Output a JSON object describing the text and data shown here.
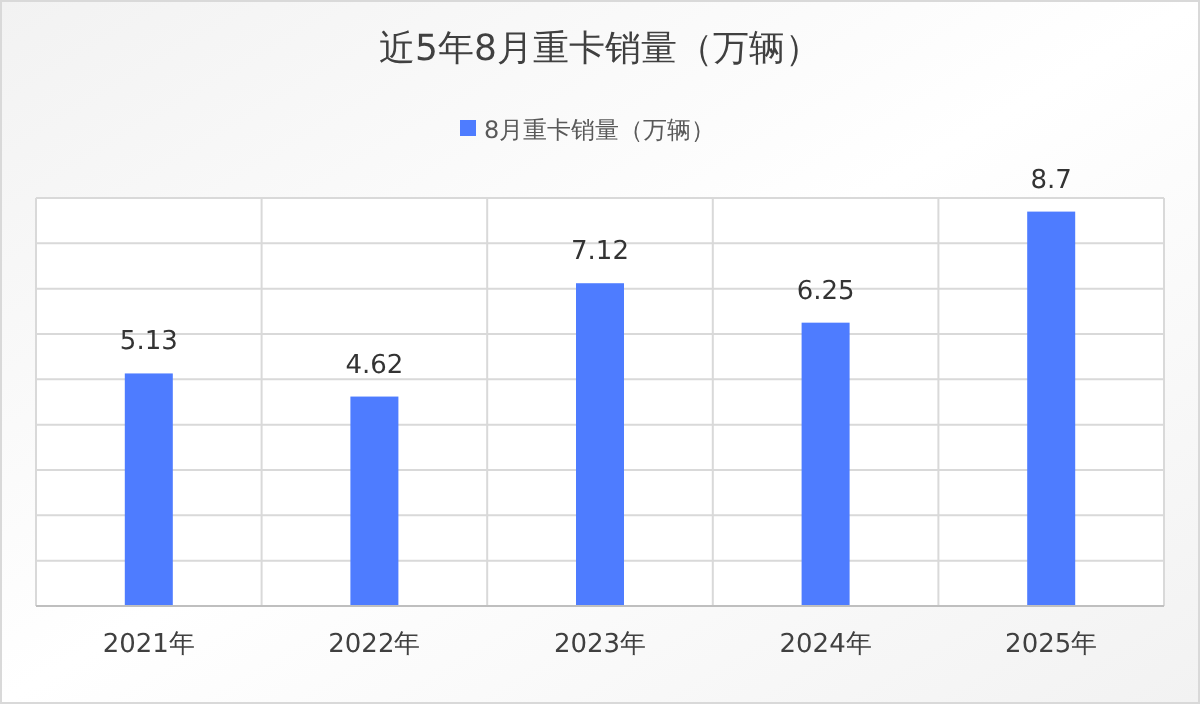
{
  "chart_data": {
    "type": "bar",
    "title": "近5年8月重卡销量（万辆）",
    "categories": [
      "2021年",
      "2022年",
      "2023年",
      "2024年",
      "2025年"
    ],
    "series": [
      {
        "name": "8月重卡销量（万辆）",
        "color": "#4e7cff",
        "values": [
          5.13,
          4.62,
          7.12,
          6.25,
          8.7
        ]
      }
    ],
    "ylim": [
      0,
      9
    ],
    "yticks": [
      {
        "value": 0,
        "label": null
      },
      {
        "value": 1,
        "label": null
      },
      {
        "value": 2,
        "label": null
      },
      {
        "value": 3,
        "label": null
      },
      {
        "value": 4,
        "label": null
      },
      {
        "value": 5,
        "label": null
      },
      {
        "value": 6,
        "label": null
      },
      {
        "value": 7,
        "label": null
      },
      {
        "value": 8,
        "label": null
      },
      {
        "value": 9,
        "label": null
      }
    ],
    "grid": true,
    "legend": "top",
    "tick_labels": "x",
    "data_labels": true
  }
}
